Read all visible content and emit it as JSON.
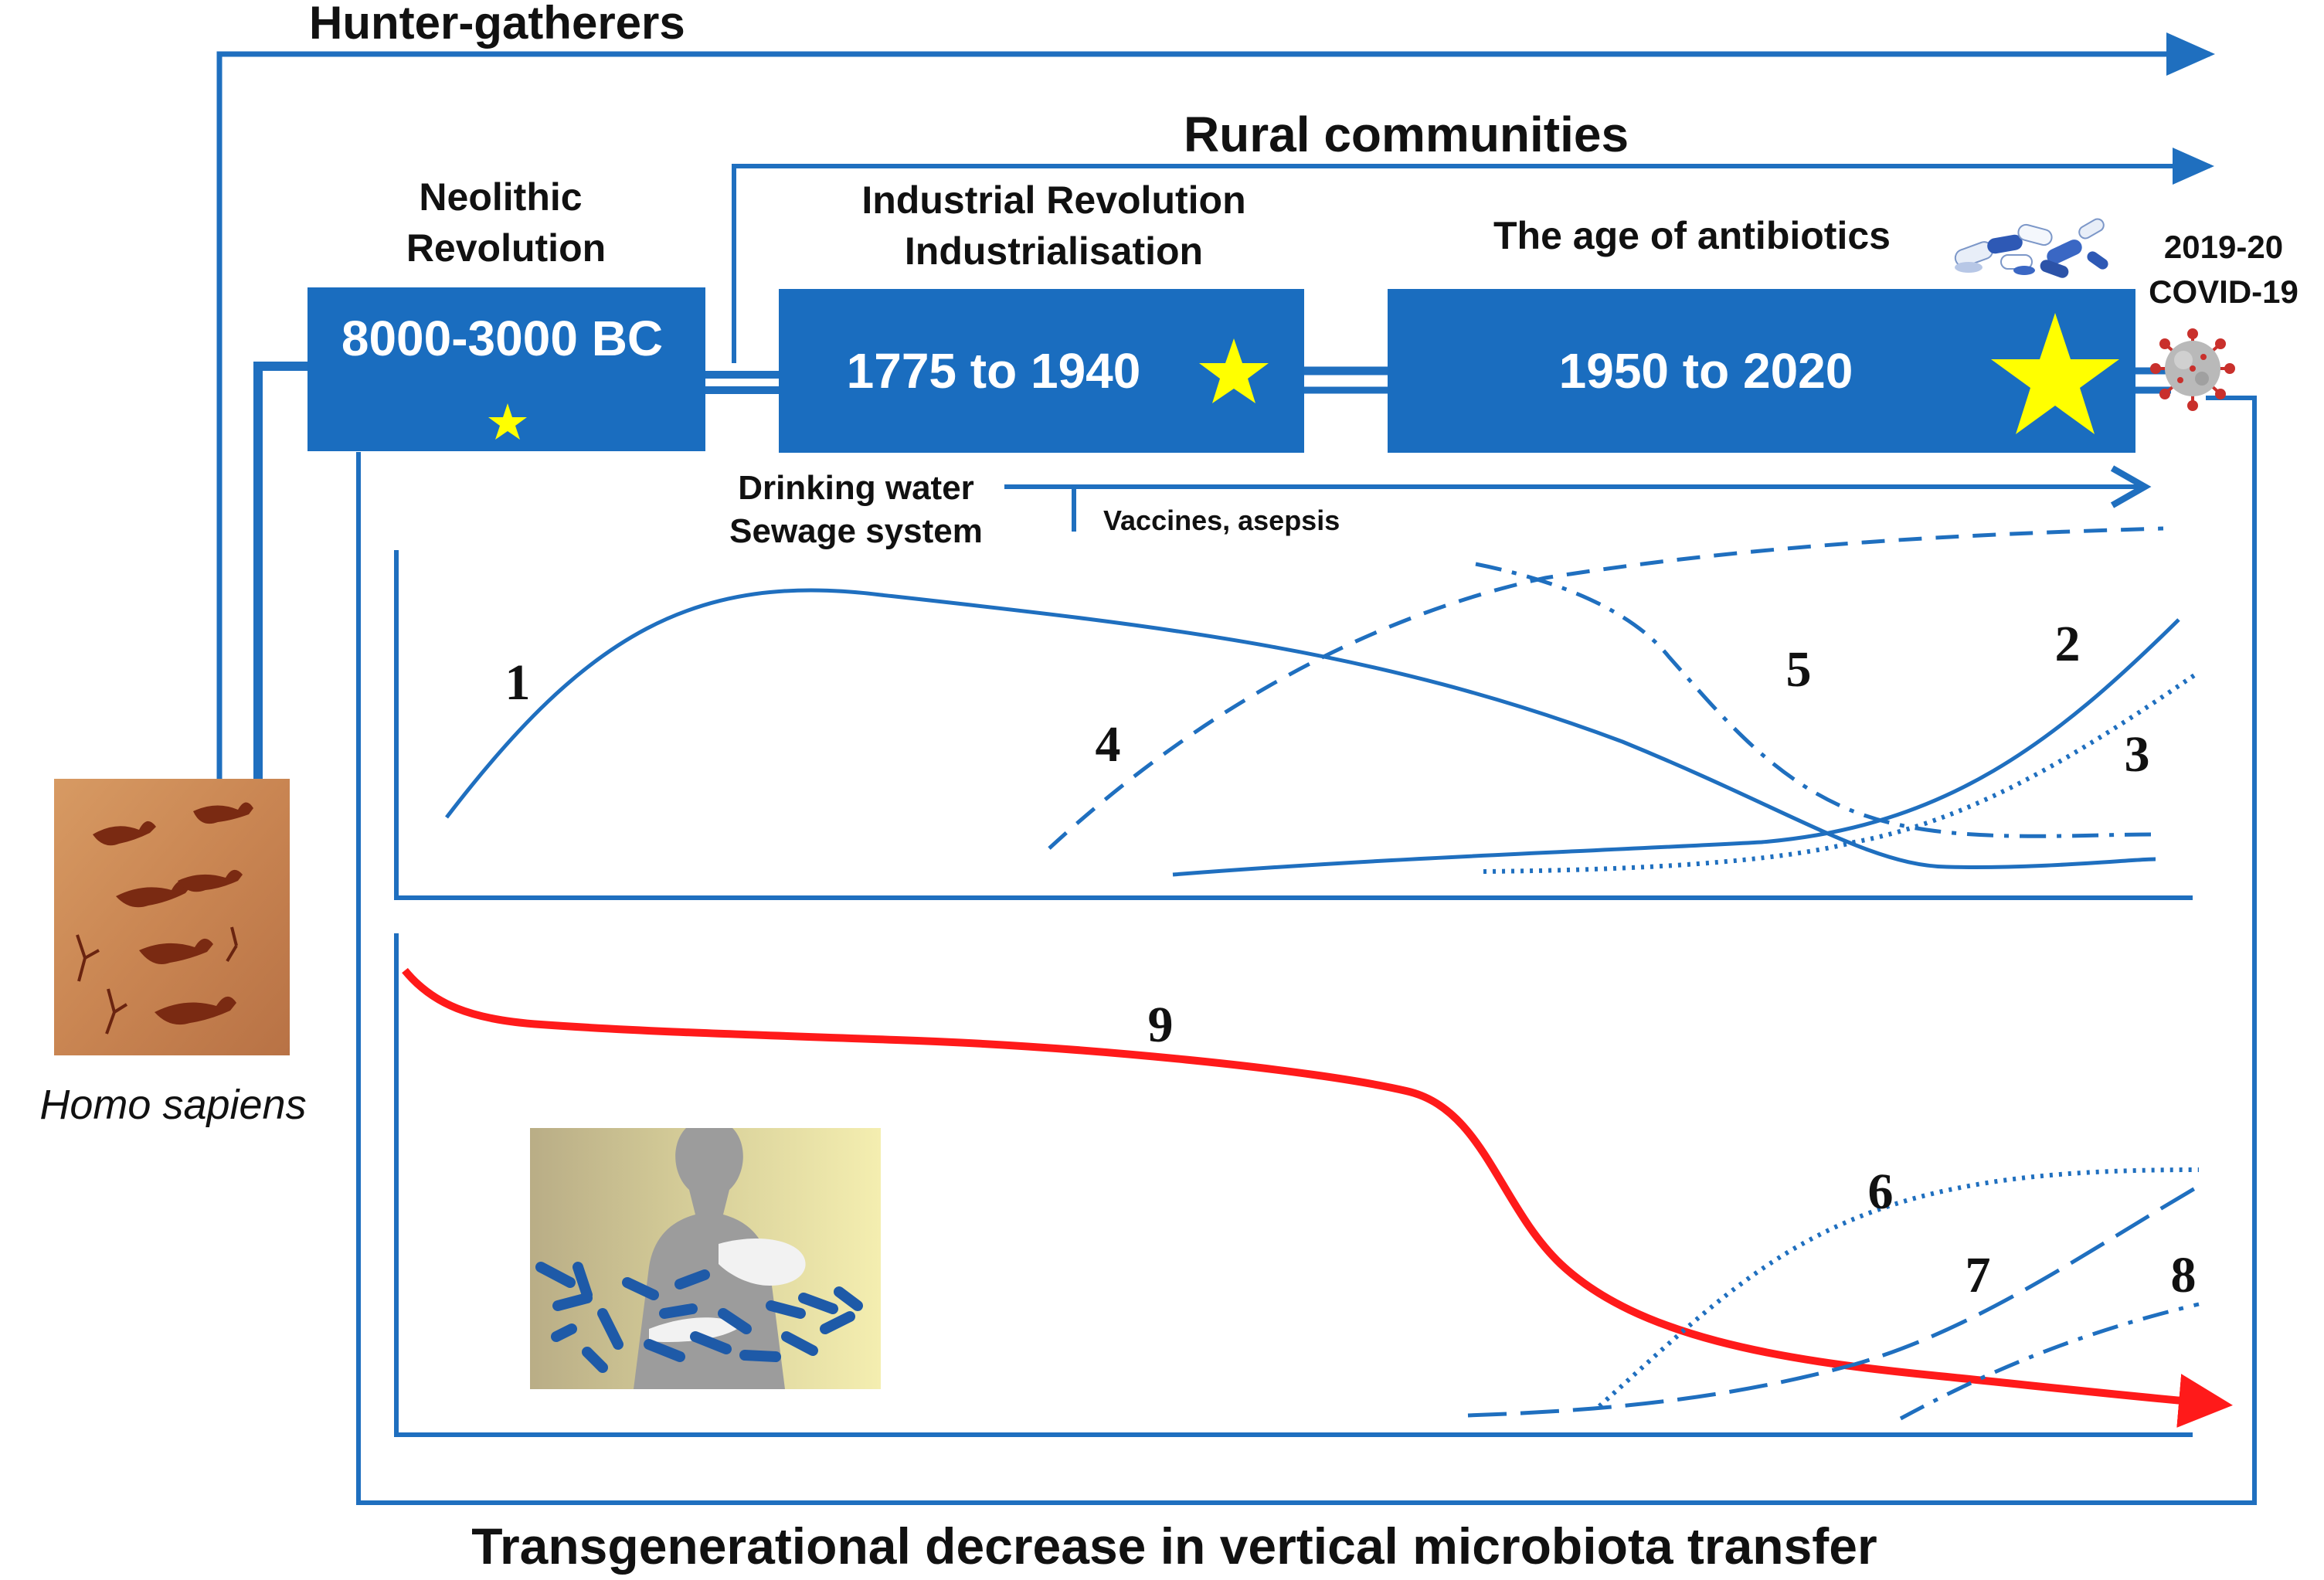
{
  "top_labels": {
    "hunter_gatherers": "Hunter-gatherers",
    "rural_communities": "Rural communities",
    "neolithic_line1": "Neolithic",
    "neolithic_line2": "Revolution",
    "industrial_line1": "Industrial Revolution",
    "industrial_line2": "Industrialisation",
    "antibiotics": "The age of antibiotics",
    "covid_line1": "2019-20",
    "covid_line2": "COVID-19"
  },
  "period_boxes": {
    "neolithic": "8000-3000 BC",
    "industrial": "1775 to 1940",
    "antibiotics": "1950 to 2020"
  },
  "interventions": {
    "water_line1": "Drinking water",
    "water_line2": "Sewage system",
    "vaccines": "Vaccines, asepsis"
  },
  "curve_numbers": {
    "c1": "1",
    "c2": "2",
    "c3": "3",
    "c4": "4",
    "c5": "5",
    "c6": "6",
    "c7": "7",
    "c8": "8",
    "c9": "9"
  },
  "homo_sapiens": "Homo sapiens",
  "bottom_title": "Transgenerational decrease in vertical microbiota transfer",
  "colors": {
    "primary_blue": "#1f6fbf",
    "box_blue": "#1a6dbf",
    "star_yellow": "#ffff00",
    "trend_red": "#ff1a1a",
    "text_black": "#111111"
  },
  "icons": {
    "cave_painting": "cave-painting-image",
    "pills": "antibiotic-pills-icon",
    "virus": "coronavirus-icon",
    "mother_infant": "mother-infant-microbiota-image"
  }
}
